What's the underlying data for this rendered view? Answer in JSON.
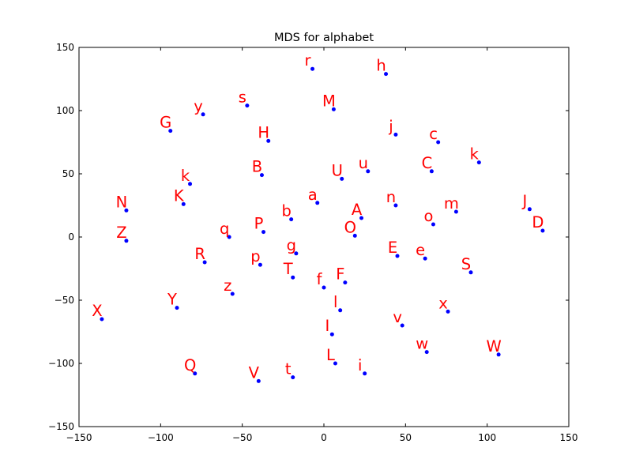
{
  "chart_data": {
    "type": "scatter",
    "title": "MDS for alphabet",
    "xlabel": "",
    "ylabel": "",
    "xlim": [
      -150,
      150
    ],
    "ylim": [
      -150,
      150
    ],
    "xticks": [
      -150,
      -100,
      -50,
      0,
      50,
      100,
      150
    ],
    "yticks": [
      -150,
      -100,
      -50,
      0,
      50,
      100,
      150
    ],
    "xtick_labels": [
      "−150",
      "−100",
      "−50",
      "0",
      "50",
      "100",
      "150"
    ],
    "ytick_labels": [
      "−150",
      "−100",
      "−50",
      "0",
      "50",
      "100",
      "150"
    ],
    "grid": false,
    "point_color": "#0000ff",
    "label_color": "#ff0000",
    "points": [
      {
        "label": "r",
        "x": -7,
        "y": 133
      },
      {
        "label": "h",
        "x": 38,
        "y": 129
      },
      {
        "label": "s",
        "x": -47,
        "y": 104
      },
      {
        "label": "M",
        "x": 6,
        "y": 101
      },
      {
        "label": "y",
        "x": -74,
        "y": 97
      },
      {
        "label": "G",
        "x": -94,
        "y": 84
      },
      {
        "label": "j",
        "x": 44,
        "y": 81
      },
      {
        "label": "H",
        "x": -34,
        "y": 76
      },
      {
        "label": "c",
        "x": 70,
        "y": 75
      },
      {
        "label": "k",
        "x": -82,
        "y": 42
      },
      {
        "label": "B",
        "x": -38,
        "y": 49
      },
      {
        "label": "U",
        "x": 11,
        "y": 46
      },
      {
        "label": "u",
        "x": 27,
        "y": 52
      },
      {
        "label": "C",
        "x": 66,
        "y": 52
      },
      {
        "label": "k",
        "x": 95,
        "y": 59
      },
      {
        "label": "N",
        "x": -121,
        "y": 21
      },
      {
        "label": "K",
        "x": -86,
        "y": 26
      },
      {
        "label": "a",
        "x": -4,
        "y": 27
      },
      {
        "label": "b",
        "x": -20,
        "y": 14
      },
      {
        "label": "A",
        "x": 23,
        "y": 15
      },
      {
        "label": "n",
        "x": 44,
        "y": 25
      },
      {
        "label": "m",
        "x": 81,
        "y": 20
      },
      {
        "label": "J",
        "x": 126,
        "y": 22
      },
      {
        "label": "D",
        "x": 134,
        "y": 5
      },
      {
        "label": "o",
        "x": 67,
        "y": 10
      },
      {
        "label": "Z",
        "x": -121,
        "y": -3
      },
      {
        "label": "q",
        "x": -58,
        "y": 0
      },
      {
        "label": "P",
        "x": -37,
        "y": 4
      },
      {
        "label": "O",
        "x": 19,
        "y": 1
      },
      {
        "label": "g",
        "x": -17,
        "y": -13
      },
      {
        "label": "R",
        "x": -73,
        "y": -20
      },
      {
        "label": "p",
        "x": -39,
        "y": -22
      },
      {
        "label": "T",
        "x": -19,
        "y": -32
      },
      {
        "label": "E",
        "x": 45,
        "y": -15
      },
      {
        "label": "e",
        "x": 62,
        "y": -17
      },
      {
        "label": "S",
        "x": 90,
        "y": -28
      },
      {
        "label": "f",
        "x": 0,
        "y": -40
      },
      {
        "label": "F",
        "x": 13,
        "y": -36
      },
      {
        "label": "z",
        "x": -56,
        "y": -45
      },
      {
        "label": "Y",
        "x": -90,
        "y": -56
      },
      {
        "label": "l",
        "x": 10,
        "y": -58
      },
      {
        "label": "x",
        "x": 76,
        "y": -59
      },
      {
        "label": "X",
        "x": -136,
        "y": -65
      },
      {
        "label": "v",
        "x": 48,
        "y": -70
      },
      {
        "label": "I",
        "x": 5,
        "y": -77
      },
      {
        "label": "w",
        "x": 63,
        "y": -91
      },
      {
        "label": "W",
        "x": 107,
        "y": -93
      },
      {
        "label": "L",
        "x": 7,
        "y": -100
      },
      {
        "label": "i",
        "x": 25,
        "y": -108
      },
      {
        "label": "Q",
        "x": -79,
        "y": -108
      },
      {
        "label": "t",
        "x": -19,
        "y": -111
      },
      {
        "label": "V",
        "x": -40,
        "y": -114
      }
    ]
  }
}
